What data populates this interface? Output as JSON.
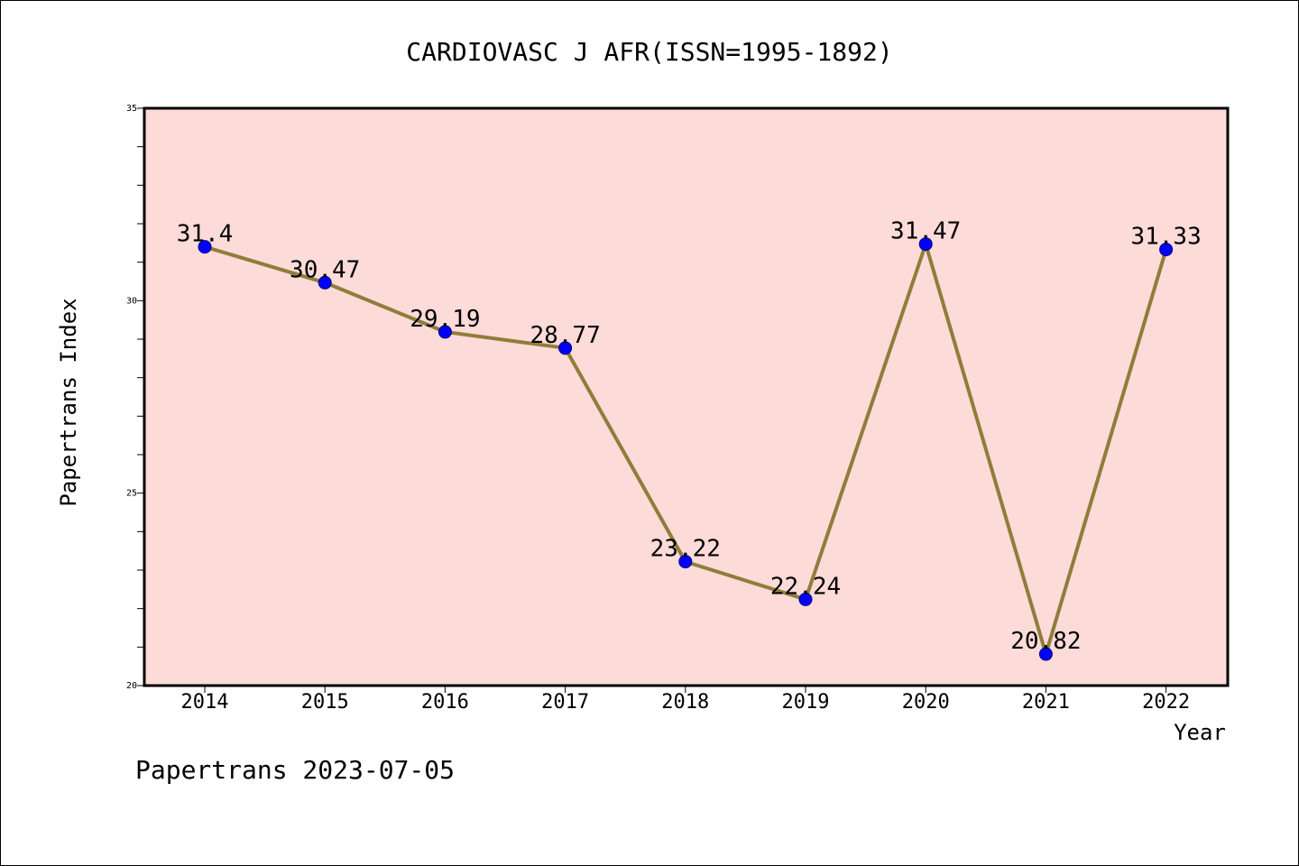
{
  "chart_data": {
    "type": "line",
    "title": "CARDIOVASC J AFR(ISSN=1995-1892)",
    "xlabel": "Year",
    "ylabel": "Papertrans Index",
    "categories": [
      "2014",
      "2015",
      "2016",
      "2017",
      "2018",
      "2019",
      "2020",
      "2021",
      "2022"
    ],
    "values": [
      31.4,
      30.47,
      29.19,
      28.77,
      23.22,
      22.24,
      31.47,
      20.82,
      31.33
    ],
    "data_labels": [
      "31.4",
      "30.47",
      "29.19",
      "28.77",
      "23.22",
      "22.24",
      "31.47",
      "20.82",
      "31.33"
    ],
    "ylim": [
      20,
      35
    ],
    "yticks": [
      20,
      25,
      30,
      35
    ],
    "yticks_minor_step": 1,
    "grid": false,
    "legend": "none"
  },
  "colors": {
    "plot_background": "#fddbd9",
    "line": "#8f7d3a",
    "marker_fill": "#0000ff",
    "marker_edge": "#00007f",
    "axis": "#000000"
  },
  "footer": {
    "text": "Papertrans 2023-07-05"
  }
}
